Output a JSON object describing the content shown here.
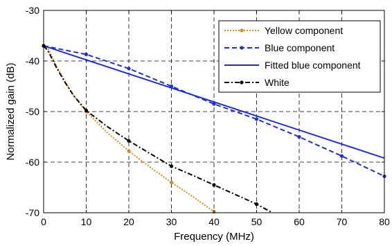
{
  "chart_data": {
    "type": "line",
    "xlabel": "Frequency (MHz)",
    "ylabel": "Normalized gain (dB)",
    "xlim": [
      0,
      80
    ],
    "ylim": [
      -70,
      -30
    ],
    "xticks": [
      0,
      10,
      20,
      30,
      40,
      50,
      60,
      70,
      80
    ],
    "yticks": [
      -30,
      -40,
      -50,
      -60,
      -70
    ],
    "grid": true,
    "legend_position": "top-right",
    "series": [
      {
        "name": "Yellow component",
        "color": "#d98b1a",
        "style": "dotted",
        "marker": "dot",
        "x": [
          0,
          1,
          2,
          3,
          5,
          7,
          10,
          15,
          20,
          25,
          30,
          35,
          40
        ],
        "y": [
          -37,
          -37.5,
          -39.2,
          -41,
          -44,
          -46.8,
          -50,
          -54.2,
          -57.8,
          -61,
          -64,
          -66.8,
          -69.8
        ]
      },
      {
        "name": "Blue component",
        "color": "#1f2fd6",
        "style": "dashed",
        "marker": "dot",
        "x": [
          0,
          10,
          20,
          30,
          40,
          50,
          60,
          70,
          80
        ],
        "y": [
          -37,
          -38.7,
          -41.5,
          -45,
          -48.5,
          -51.5,
          -55,
          -58.8,
          -62.8
        ]
      },
      {
        "name": "Fitted blue component",
        "color": "#1f2fd6",
        "style": "solid",
        "marker": "none",
        "x": [
          0,
          80
        ],
        "y": [
          -37,
          -59.2
        ]
      },
      {
        "name": "White",
        "color": "#000000",
        "style": "dashdot",
        "marker": "dot",
        "x": [
          0,
          1,
          2,
          3,
          5,
          7,
          10,
          15,
          20,
          25,
          30,
          35,
          40,
          45,
          50,
          53.7
        ],
        "y": [
          -37,
          -38,
          -39.6,
          -41.3,
          -44.2,
          -46.8,
          -49.8,
          -53,
          -55.8,
          -58.3,
          -60.8,
          -62.6,
          -64.5,
          -66.4,
          -68.3,
          -70
        ]
      }
    ]
  }
}
